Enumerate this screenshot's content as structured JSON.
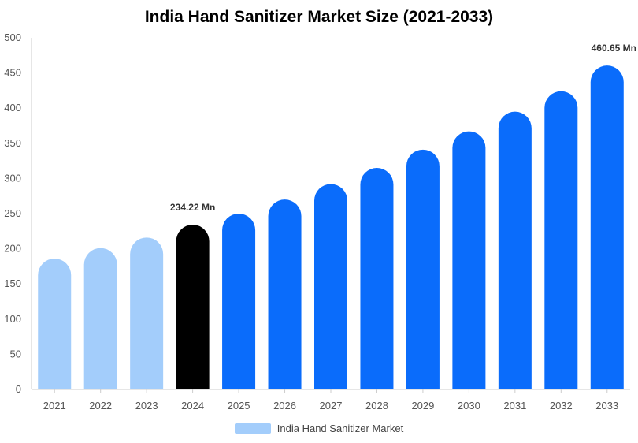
{
  "chart_data": {
    "type": "bar",
    "title": "India Hand Sanitizer Market Size (2021-2033)",
    "xlabel": "",
    "ylabel": "",
    "ylim": [
      0,
      500
    ],
    "y_ticks": [
      0,
      50,
      100,
      150,
      200,
      250,
      300,
      350,
      400,
      450,
      500
    ],
    "categories": [
      "2021",
      "2022",
      "2023",
      "2024",
      "2025",
      "2026",
      "2027",
      "2028",
      "2029",
      "2030",
      "2031",
      "2032",
      "2033"
    ],
    "series": [
      {
        "name": "India Hand Sanitizer Market",
        "values": [
          186,
          201,
          216,
          234.22,
          250,
          270,
          292,
          315,
          341,
          367,
          395,
          424,
          460.65
        ]
      }
    ],
    "bar_colors": [
      "#a3cdfb",
      "#a3cdfb",
      "#a3cdfb",
      "#000000",
      "#0a6cfb",
      "#0a6cfb",
      "#0a6cfb",
      "#0a6cfb",
      "#0a6cfb",
      "#0a6cfb",
      "#0a6cfb",
      "#0a6cfb",
      "#0a6cfb"
    ],
    "annotations": [
      {
        "category": "2024",
        "text": "234.22 Mn"
      },
      {
        "category": "2033",
        "text": "460.65 Mn"
      }
    ],
    "grid": false,
    "legend_position": "bottom",
    "legend_color": "#a3cdfb"
  }
}
